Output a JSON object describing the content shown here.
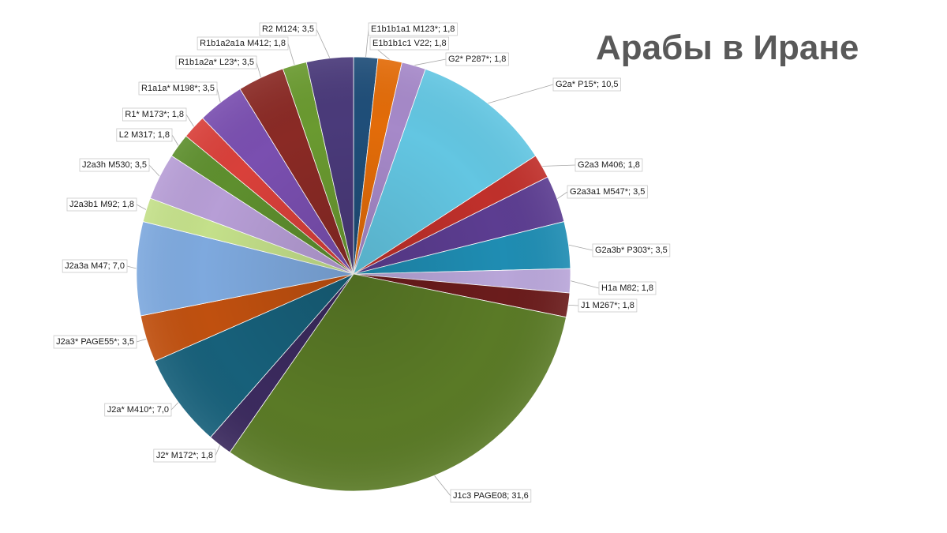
{
  "chart_data": {
    "type": "pie",
    "title": "Арабы в Иране",
    "slices": [
      {
        "label": "E1b1b1a1 M123*; 1,8",
        "value": 1.8,
        "color": "#1f4e79"
      },
      {
        "label": "E1b1b1c1 V22; 1,8",
        "value": 1.8,
        "color": "#e36c09"
      },
      {
        "label": "G2* P287*; 1,8",
        "value": 1.8,
        "color": "#a689c9"
      },
      {
        "label": "G2a* P15*; 10,5",
        "value": 10.5,
        "color": "#63c6e2"
      },
      {
        "label": "G2a3 M406; 1,8",
        "value": 1.8,
        "color": "#c0302b"
      },
      {
        "label": "G2a3a1 M547*; 3,5",
        "value": 3.5,
        "color": "#5c3d91"
      },
      {
        "label": "G2a3b* P303*; 3,5",
        "value": 3.5,
        "color": "#1f8db3"
      },
      {
        "label": "H1a M82; 1,8",
        "value": 1.8,
        "color": "#b9a6d9"
      },
      {
        "label": "J1 M267*; 1,8",
        "value": 1.8,
        "color": "#6b1c1c"
      },
      {
        "label": "J1c3 PAGE08; 31,6",
        "value": 31.6,
        "color": "#5a7a26"
      },
      {
        "label": "J2* M172*; 1,8",
        "value": 1.8,
        "color": "#3b2a5e"
      },
      {
        "label": "J2a* M410*; 7,0",
        "value": 7.0,
        "color": "#17607a"
      },
      {
        "label": "J2a3* PAGE55*; 3,5",
        "value": 3.5,
        "color": "#c0500f"
      },
      {
        "label": "J2a3a M47; 7,0",
        "value": 7.0,
        "color": "#7ea9de"
      },
      {
        "label": "J2a3b1 M92; 1,8",
        "value": 1.8,
        "color": "#c4e08a"
      },
      {
        "label": "J2a3h M530; 3,5",
        "value": 3.5,
        "color": "#b79ed6"
      },
      {
        "label": "L2 M317; 1,8",
        "value": 1.8,
        "color": "#5e8f2e"
      },
      {
        "label": "R1* M173*; 1,8",
        "value": 1.8,
        "color": "#d9403a"
      },
      {
        "label": "R1a1a* M198*; 3,5",
        "value": 3.5,
        "color": "#7a4fb0"
      },
      {
        "label": "R1b1a2a* L23*; 3,5",
        "value": 3.5,
        "color": "#8a2a25"
      },
      {
        "label": "R1b1a2a1a M412; 1,8",
        "value": 1.8,
        "color": "#6a9a30"
      },
      {
        "label": "R2 M124; 3,5",
        "value": 3.5,
        "color": "#4a3a7a"
      }
    ]
  }
}
